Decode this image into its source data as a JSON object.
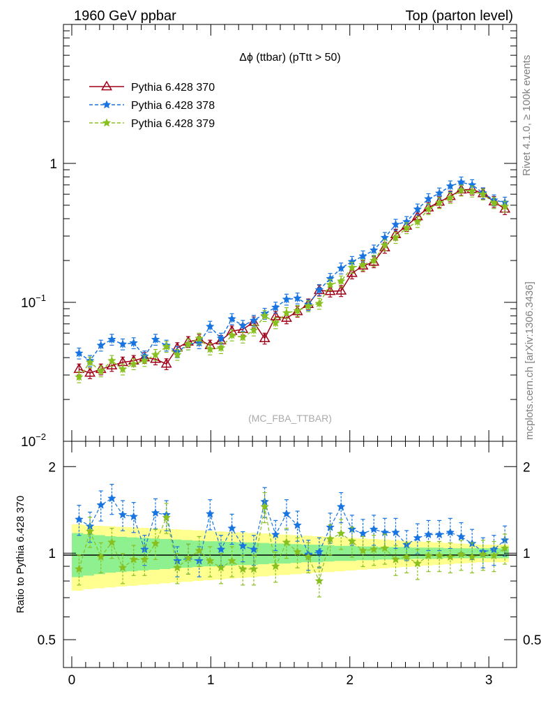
{
  "header": {
    "left": "1960 GeV ppbar",
    "right": "Top (parton level)"
  },
  "side_labels": {
    "rivet": "Rivet 4.1.0, ≥ 100k events",
    "mcplots": "mcplots.cern.ch [arXiv:1306.3436]"
  },
  "chart_data": {
    "type": "line",
    "title": "Δϕ (ttbar) (pTtt > 50)",
    "watermark": "(MC_FBA_TTBAR)",
    "xlabel": "",
    "ylabel": "",
    "xlim": [
      -0.06,
      3.2
    ],
    "ylim": [
      0.01,
      10
    ],
    "yscale": "log",
    "x_ticks": [
      "0",
      "1",
      "2",
      "3"
    ],
    "y_ticks": [
      {
        "value": 1,
        "label": "1"
      },
      {
        "value": 0.1,
        "label": "10",
        "exp": "−1"
      },
      {
        "value": 0.01,
        "label": "10",
        "exp": "−2"
      }
    ],
    "x": [
      0.0523,
      0.1309,
      0.2094,
      0.288,
      0.3665,
      0.4451,
      0.5236,
      0.6021,
      0.6807,
      0.7592,
      0.8378,
      0.9163,
      0.9948,
      1.0734,
      1.1519,
      1.2305,
      1.309,
      1.3875,
      1.4661,
      1.5446,
      1.6232,
      1.7017,
      1.7802,
      1.8588,
      1.9373,
      2.0159,
      2.0944,
      2.1729,
      2.2515,
      2.33,
      2.4086,
      2.4871,
      2.5656,
      2.6442,
      2.7227,
      2.8013,
      2.8798,
      2.9583,
      3.0369,
      3.1154
    ],
    "series": [
      {
        "name": "Pythia 6.428 370",
        "color": "#a00018",
        "marker": "triangle-open",
        "line": "solid",
        "values": [
          0.033,
          0.031,
          0.033,
          0.035,
          0.037,
          0.038,
          0.04,
          0.039,
          0.036,
          0.047,
          0.052,
          0.054,
          0.049,
          0.053,
          0.062,
          0.064,
          0.072,
          0.055,
          0.079,
          0.077,
          0.086,
          0.097,
          0.122,
          0.12,
          0.121,
          0.162,
          0.183,
          0.195,
          0.248,
          0.308,
          0.355,
          0.415,
          0.48,
          0.528,
          0.58,
          0.645,
          0.65,
          0.608,
          0.53,
          0.47
        ]
      },
      {
        "name": "Pythia 6.428 378",
        "color": "#1874e0",
        "marker": "star",
        "line": "dashed",
        "values": [
          0.043,
          0.038,
          0.049,
          0.054,
          0.05,
          0.051,
          0.041,
          0.054,
          0.049,
          0.044,
          0.05,
          0.051,
          0.067,
          0.055,
          0.076,
          0.068,
          0.074,
          0.083,
          0.092,
          0.105,
          0.107,
          0.096,
          0.123,
          0.148,
          0.176,
          0.196,
          0.215,
          0.237,
          0.292,
          0.363,
          0.38,
          0.468,
          0.555,
          0.61,
          0.686,
          0.732,
          0.7,
          0.612,
          0.544,
          0.524
        ]
      },
      {
        "name": "Pythia 6.428 379",
        "color": "#88c020",
        "marker": "star",
        "line": "dashed",
        "values": [
          0.029,
          0.037,
          0.032,
          0.038,
          0.033,
          0.036,
          0.038,
          0.042,
          0.048,
          0.042,
          0.05,
          0.055,
          0.046,
          0.047,
          0.058,
          0.056,
          0.063,
          0.08,
          0.071,
          0.084,
          0.087,
          0.094,
          0.098,
          0.134,
          0.142,
          0.178,
          0.186,
          0.2,
          0.258,
          0.292,
          0.343,
          0.38,
          0.47,
          0.52,
          0.565,
          0.64,
          0.63,
          0.6,
          0.52,
          0.49
        ]
      }
    ],
    "ratio": {
      "ylabel": "Ratio to Pythia 6.428 370",
      "ylim": [
        0.4,
        2.45
      ],
      "y_ticks": [
        "0.5",
        "1",
        "2"
      ],
      "green_band": [
        0.175,
        0.165,
        0.155,
        0.145,
        0.14,
        0.135,
        0.13,
        0.125,
        0.12,
        0.115,
        0.11,
        0.105,
        0.1,
        0.1,
        0.095,
        0.09,
        0.09,
        0.085,
        0.08,
        0.08,
        0.075,
        0.07,
        0.07,
        0.065,
        0.06,
        0.06,
        0.055,
        0.055,
        0.05,
        0.05,
        0.05,
        0.045,
        0.045,
        0.045,
        0.04,
        0.04,
        0.04,
        0.04,
        0.04,
        0.04
      ],
      "yellow_band": [
        0.26,
        0.25,
        0.245,
        0.24,
        0.235,
        0.23,
        0.225,
        0.22,
        0.215,
        0.21,
        0.205,
        0.2,
        0.195,
        0.19,
        0.185,
        0.18,
        0.175,
        0.17,
        0.165,
        0.16,
        0.155,
        0.15,
        0.145,
        0.14,
        0.135,
        0.13,
        0.125,
        0.12,
        0.115,
        0.11,
        0.105,
        0.1,
        0.095,
        0.09,
        0.085,
        0.08,
        0.075,
        0.07,
        0.07,
        0.07
      ],
      "series": [
        {
          "name": "Pythia 6.428 378",
          "color": "#1874e0",
          "values": [
            1.31,
            1.24,
            1.47,
            1.55,
            1.36,
            1.34,
            1.03,
            1.38,
            1.36,
            0.94,
            0.96,
            0.94,
            1.37,
            1.03,
            1.22,
            1.06,
            1.03,
            1.51,
            1.16,
            1.37,
            1.25,
            0.99,
            1.01,
            1.23,
            1.45,
            1.21,
            1.17,
            1.21,
            1.18,
            1.18,
            1.07,
            1.13,
            1.16,
            1.16,
            1.18,
            1.14,
            1.08,
            1.01,
            1.03,
            1.11
          ]
        },
        {
          "name": "Pythia 6.428 379",
          "color": "#88c020",
          "values": [
            0.88,
            1.19,
            0.97,
            1.09,
            0.89,
            0.95,
            0.95,
            1.08,
            1.33,
            0.89,
            0.96,
            1.02,
            0.94,
            0.89,
            0.94,
            0.88,
            0.88,
            1.45,
            0.9,
            1.09,
            1.01,
            0.97,
            0.8,
            1.12,
            1.17,
            1.1,
            1.02,
            1.03,
            1.04,
            0.95,
            0.97,
            0.92,
            0.98,
            0.98,
            0.97,
            0.99,
            0.97,
            0.99,
            0.98,
            1.04
          ]
        }
      ]
    }
  }
}
